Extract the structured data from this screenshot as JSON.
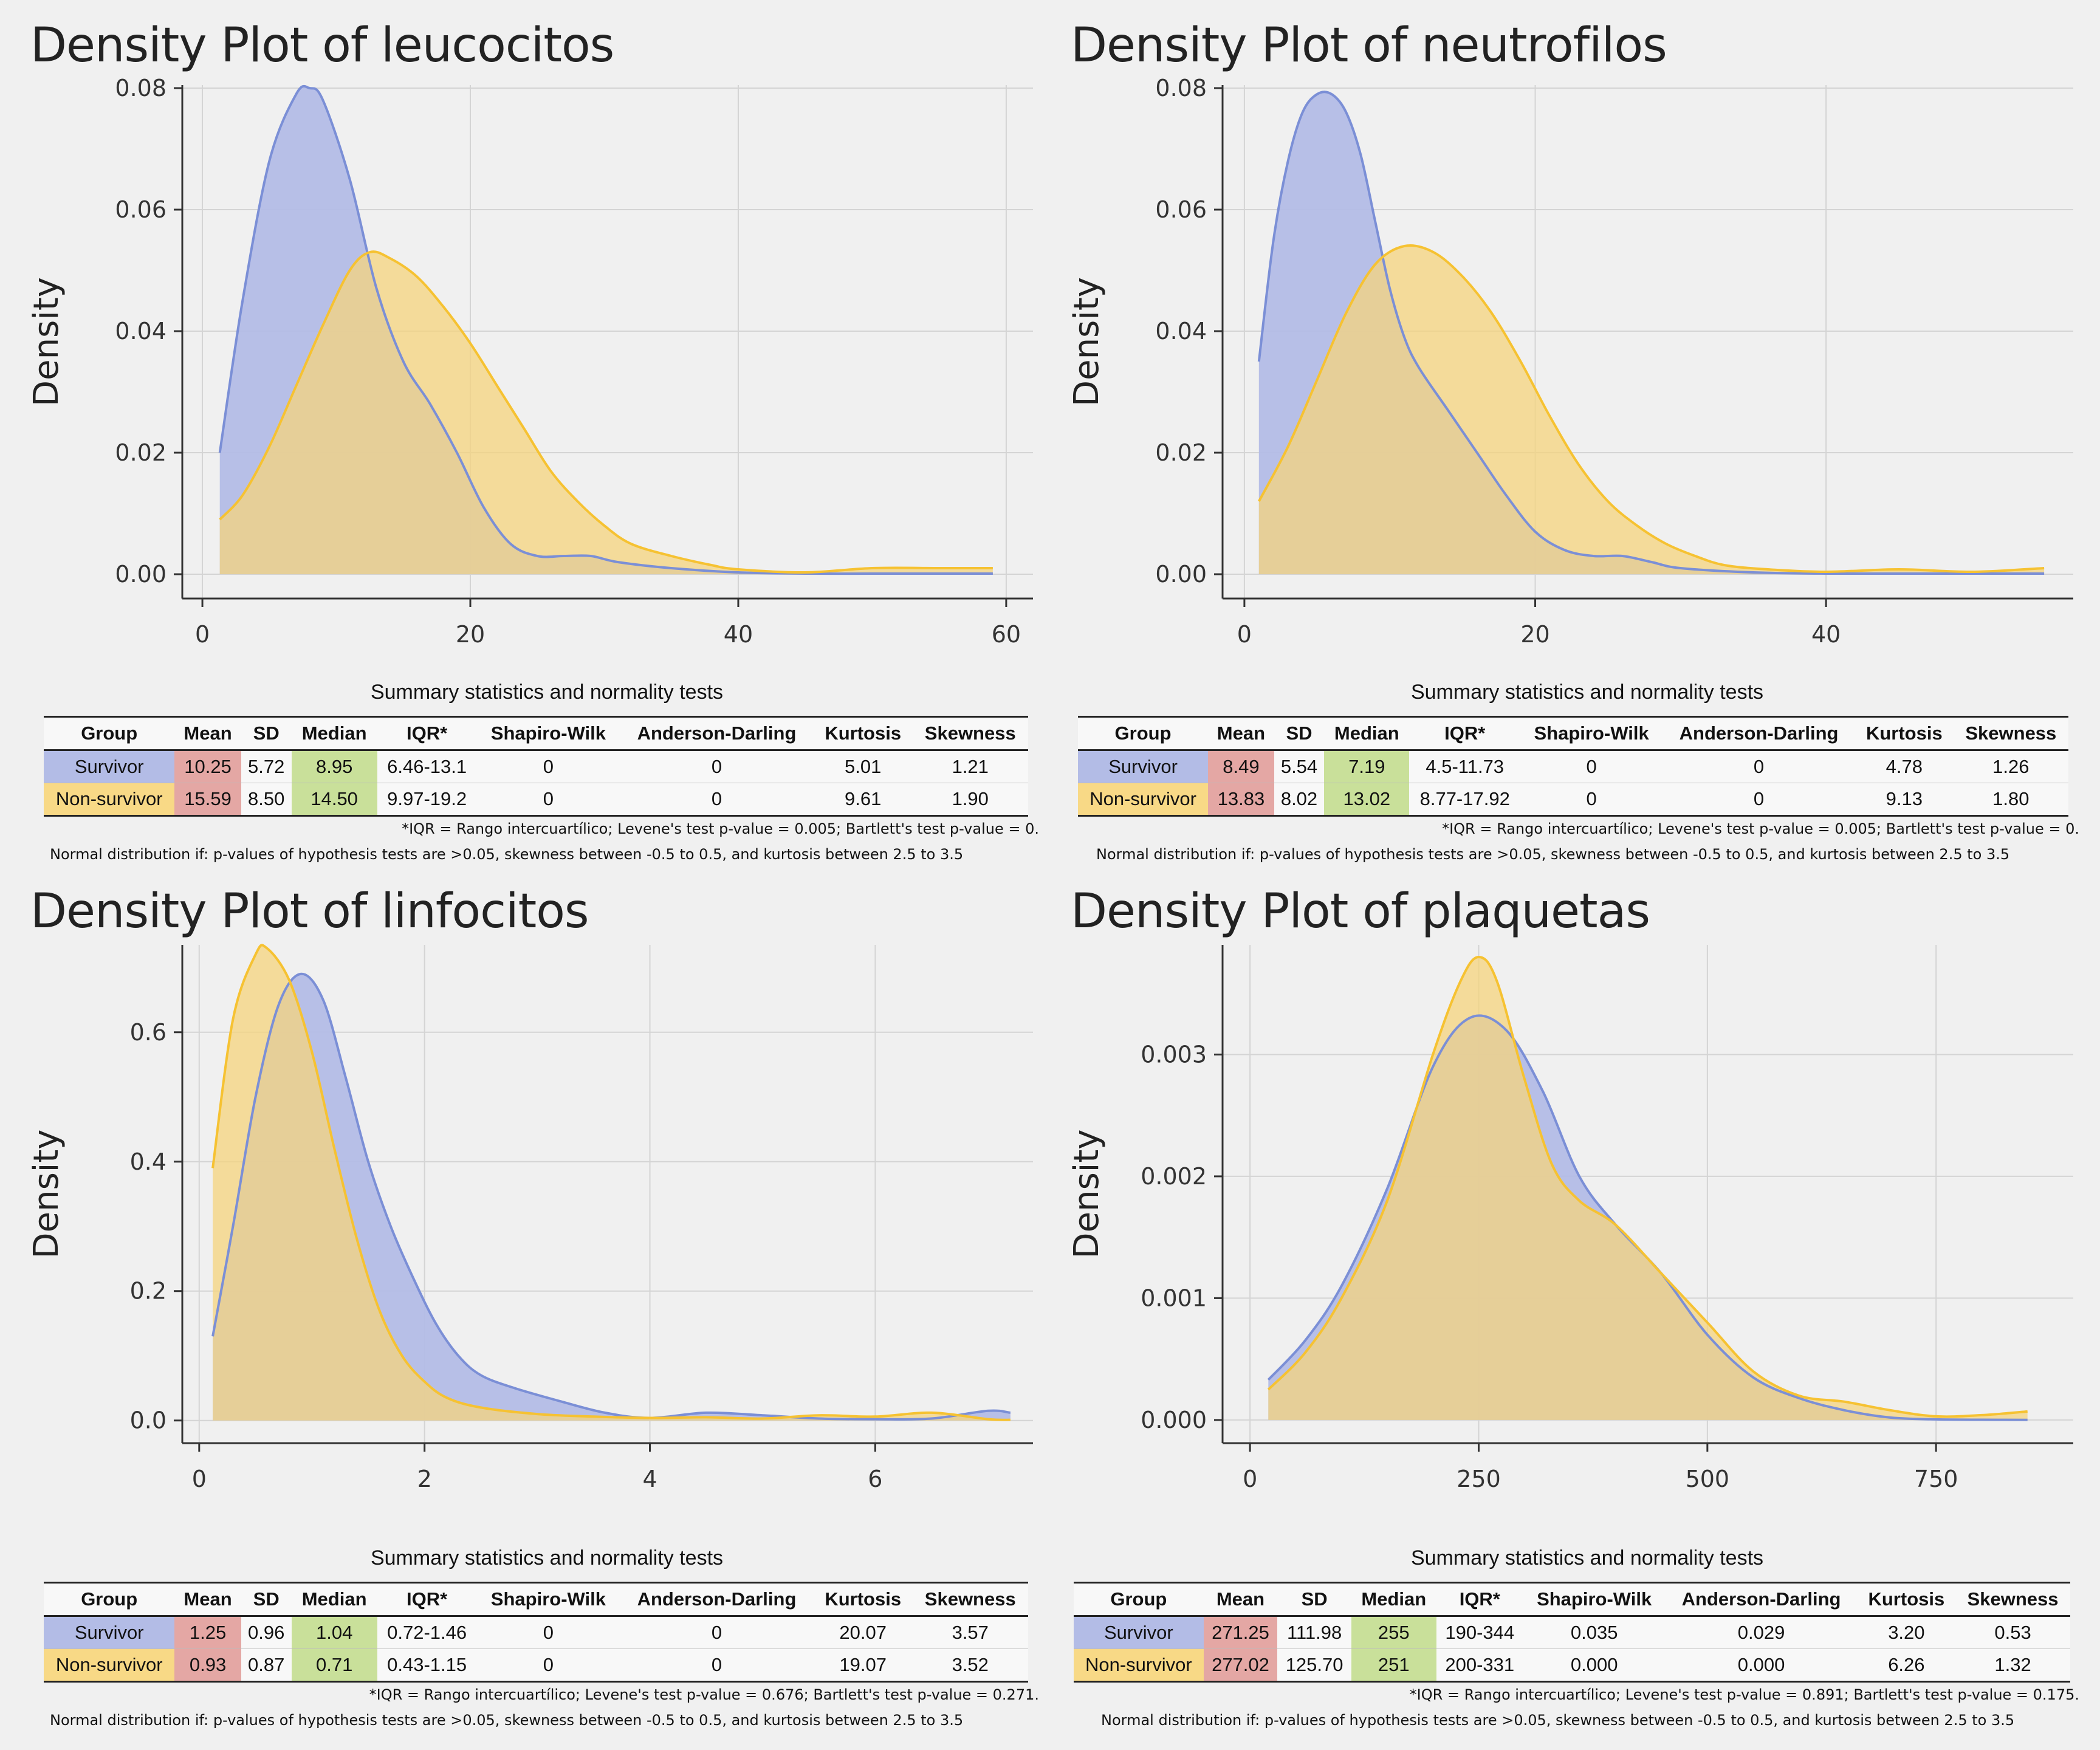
{
  "colors": {
    "survivor": "#7b8fd6",
    "survivor_fill": "#b3bce6",
    "non_survivor": "#f6c232",
    "non_survivor_fill": "#f5d47e",
    "mean": "#e4a7a4",
    "median": "#c9e09a"
  },
  "table_title": "Summary statistics and normality tests",
  "columns": [
    "Group",
    "Mean",
    "SD",
    "Median",
    "IQR*",
    "Shapiro-Wilk",
    "Anderson-Darling",
    "Kurtosis",
    "Skewness"
  ],
  "normal_note": "Normal distribution if: p-values of hypothesis tests are >0.05, skewness between -0.5 to 0.5, and kurtosis between 2.5 to 3.5",
  "panels": [
    {
      "title": "Density Plot of leucocitos",
      "iqr_note": "*IQR = Rango intercuartílico; Levene's test p-value = 0.005; Bartlett's test p-value = 0.",
      "rows": [
        [
          "Survivor",
          "10.25",
          "5.72",
          "8.95",
          "6.46-13.1",
          "0",
          "0",
          "5.01",
          "1.21"
        ],
        [
          "Non-survivor",
          "15.59",
          "8.50",
          "14.50",
          "9.97-19.2",
          "0",
          "0",
          "9.61",
          "1.90"
        ]
      ]
    },
    {
      "title": "Density Plot of neutrofilos",
      "iqr_note": "*IQR = Rango intercuartílico; Levene's test p-value = 0.005; Bartlett's test p-value = 0.",
      "rows": [
        [
          "Survivor",
          "8.49",
          "5.54",
          "7.19",
          "4.5-11.73",
          "0",
          "0",
          "4.78",
          "1.26"
        ],
        [
          "Non-survivor",
          "13.83",
          "8.02",
          "13.02",
          "8.77-17.92",
          "0",
          "0",
          "9.13",
          "1.80"
        ]
      ]
    },
    {
      "title": "Density Plot of linfocitos",
      "iqr_note": "*IQR = Rango intercuartílico; Levene's test p-value = 0.676; Bartlett's test p-value = 0.271.",
      "rows": [
        [
          "Survivor",
          "1.25",
          "0.96",
          "1.04",
          "0.72-1.46",
          "0",
          "0",
          "20.07",
          "3.57"
        ],
        [
          "Non-survivor",
          "0.93",
          "0.87",
          "0.71",
          "0.43-1.15",
          "0",
          "0",
          "19.07",
          "3.52"
        ]
      ]
    },
    {
      "title": "Density Plot of plaquetas",
      "iqr_note": "*IQR = Rango intercuartílico; Levene's test p-value = 0.891; Bartlett's test p-value = 0.175.",
      "rows": [
        [
          "Survivor",
          "271.25",
          "111.98",
          "255",
          "190-344",
          "0.035",
          "0.029",
          "3.20",
          "0.53"
        ],
        [
          "Non-survivor",
          "277.02",
          "125.70",
          "251",
          "200-331",
          "0.000",
          "0.000",
          "6.26",
          "1.32"
        ]
      ]
    }
  ],
  "chart_data": [
    {
      "type": "area",
      "title": "Density Plot of leucocitos",
      "xlabel": "",
      "ylabel": "Density",
      "xlim": [
        -1.5,
        62
      ],
      "ylim": [
        -0.004,
        0.0805
      ],
      "xticks": [
        0,
        20,
        40,
        60
      ],
      "yticks": [
        0.0,
        0.02,
        0.04,
        0.06,
        0.08
      ],
      "ytick_labels": [
        "0.00",
        "0.02",
        "0.04",
        "0.06",
        "0.08"
      ],
      "grid": true,
      "legend": "none",
      "series": [
        {
          "name": "Survivor",
          "x": [
            1.3,
            3,
            5,
            7,
            8,
            9,
            11,
            13,
            15,
            17,
            19,
            21,
            23,
            25,
            27,
            29,
            31,
            35,
            40,
            45,
            50,
            55,
            59
          ],
          "y": [
            0.02,
            0.045,
            0.068,
            0.079,
            0.08,
            0.078,
            0.065,
            0.047,
            0.035,
            0.028,
            0.02,
            0.011,
            0.005,
            0.003,
            0.003,
            0.003,
            0.002,
            0.001,
            0.0003,
            0.0001,
            0.0001,
            0.0001,
            0.0001
          ]
        },
        {
          "name": "Non-survivor",
          "x": [
            1.3,
            3,
            5,
            7,
            9,
            11,
            12.5,
            14,
            16,
            18,
            20,
            22,
            24,
            26,
            28,
            30,
            32,
            35,
            38,
            40,
            45,
            50,
            55,
            59
          ],
          "y": [
            0.009,
            0.013,
            0.021,
            0.031,
            0.041,
            0.05,
            0.053,
            0.052,
            0.049,
            0.044,
            0.038,
            0.031,
            0.024,
            0.017,
            0.012,
            0.008,
            0.005,
            0.003,
            0.0015,
            0.0008,
            0.0003,
            0.001,
            0.001,
            0.001
          ]
        }
      ]
    },
    {
      "type": "area",
      "title": "Density Plot of neutrofilos",
      "xlabel": "",
      "ylabel": "Density",
      "xlim": [
        -1.5,
        57
      ],
      "ylim": [
        -0.004,
        0.0805
      ],
      "xticks": [
        0,
        20,
        40
      ],
      "yticks": [
        0.0,
        0.02,
        0.04,
        0.06,
        0.08
      ],
      "ytick_labels": [
        "0.00",
        "0.02",
        "0.04",
        "0.06",
        "0.08"
      ],
      "grid": true,
      "legend": "none",
      "series": [
        {
          "name": "Survivor",
          "x": [
            1,
            2,
            3,
            4,
            5,
            6,
            7,
            8,
            9,
            10,
            11,
            12,
            14,
            16,
            18,
            20,
            22,
            24,
            26,
            28,
            30,
            35,
            40,
            45,
            50,
            55
          ],
          "y": [
            0.035,
            0.055,
            0.068,
            0.076,
            0.079,
            0.079,
            0.076,
            0.069,
            0.058,
            0.047,
            0.039,
            0.034,
            0.027,
            0.02,
            0.013,
            0.007,
            0.004,
            0.003,
            0.003,
            0.002,
            0.001,
            0.0003,
            0.0001,
            0.0001,
            0.0001,
            0.0001
          ]
        },
        {
          "name": "Non-survivor",
          "x": [
            1,
            3,
            5,
            7,
            9,
            11,
            13,
            15,
            17,
            19,
            21,
            23,
            25,
            27,
            29,
            31,
            33,
            36,
            40,
            45,
            50,
            55
          ],
          "y": [
            0.012,
            0.021,
            0.032,
            0.043,
            0.051,
            0.054,
            0.053,
            0.049,
            0.043,
            0.035,
            0.026,
            0.018,
            0.012,
            0.008,
            0.005,
            0.003,
            0.0015,
            0.0008,
            0.0004,
            0.0008,
            0.0004,
            0.001
          ]
        }
      ]
    },
    {
      "type": "area",
      "title": "Density Plot of linfocitos",
      "xlabel": "",
      "ylabel": "Density",
      "xlim": [
        -0.15,
        7.4
      ],
      "ylim": [
        -0.035,
        0.735
      ],
      "xticks": [
        0,
        2,
        4,
        6
      ],
      "yticks": [
        0.0,
        0.2,
        0.4,
        0.6
      ],
      "ytick_labels": [
        "0.0",
        "0.2",
        "0.4",
        "0.6"
      ],
      "grid": true,
      "legend": "none",
      "series": [
        {
          "name": "Survivor",
          "x": [
            0.12,
            0.3,
            0.5,
            0.7,
            0.9,
            1.1,
            1.3,
            1.5,
            1.7,
            1.9,
            2.1,
            2.3,
            2.5,
            2.8,
            3.2,
            3.6,
            4,
            4.5,
            5,
            5.5,
            6,
            6.5,
            7,
            7.2
          ],
          "y": [
            0.13,
            0.3,
            0.5,
            0.64,
            0.69,
            0.65,
            0.53,
            0.4,
            0.3,
            0.22,
            0.15,
            0.1,
            0.07,
            0.05,
            0.03,
            0.012,
            0.004,
            0.012,
            0.008,
            0.003,
            0.002,
            0.003,
            0.015,
            0.012
          ]
        },
        {
          "name": "Non-survivor",
          "x": [
            0.12,
            0.3,
            0.5,
            0.6,
            0.8,
            1.0,
            1.2,
            1.4,
            1.6,
            1.8,
            2.0,
            2.2,
            2.5,
            3,
            3.5,
            4,
            4.5,
            5,
            5.5,
            6,
            6.5,
            7,
            7.2
          ],
          "y": [
            0.39,
            0.62,
            0.72,
            0.73,
            0.68,
            0.57,
            0.42,
            0.28,
            0.17,
            0.1,
            0.06,
            0.035,
            0.02,
            0.01,
            0.006,
            0.004,
            0.005,
            0.003,
            0.008,
            0.006,
            0.012,
            0.002,
            0.001
          ]
        }
      ]
    },
    {
      "type": "area",
      "title": "Density Plot of plaquetas",
      "xlabel": "",
      "ylabel": "Density",
      "xlim": [
        -30,
        900
      ],
      "ylim": [
        -0.00019,
        0.0039
      ],
      "xticks": [
        0,
        250,
        500,
        750
      ],
      "yticks": [
        0.0,
        0.001,
        0.002,
        0.003
      ],
      "ytick_labels": [
        "0.000",
        "0.001",
        "0.002",
        "0.003"
      ],
      "grid": true,
      "legend": "none",
      "series": [
        {
          "name": "Survivor",
          "x": [
            20,
            60,
            100,
            150,
            200,
            240,
            280,
            320,
            360,
            400,
            450,
            500,
            550,
            600,
            650,
            700,
            750,
            800,
            850
          ],
          "y": [
            0.00033,
            0.00065,
            0.0011,
            0.0019,
            0.0029,
            0.0033,
            0.0032,
            0.0027,
            0.002,
            0.0016,
            0.0012,
            0.0007,
            0.00035,
            0.00018,
            8e-05,
            2e-05,
            5e-06,
            2e-06,
            1e-06
          ]
        },
        {
          "name": "Non-survivor",
          "x": [
            20,
            60,
            100,
            150,
            200,
            230,
            250,
            270,
            300,
            330,
            360,
            400,
            450,
            500,
            550,
            600,
            650,
            700,
            750,
            800,
            850
          ],
          "y": [
            0.00025,
            0.00055,
            0.001,
            0.0018,
            0.003,
            0.0036,
            0.0038,
            0.0036,
            0.0028,
            0.0021,
            0.0018,
            0.0016,
            0.0012,
            0.0008,
            0.0004,
            0.0002,
            0.00015,
            8e-05,
            3e-05,
            4e-05,
            7e-05
          ]
        }
      ]
    }
  ]
}
